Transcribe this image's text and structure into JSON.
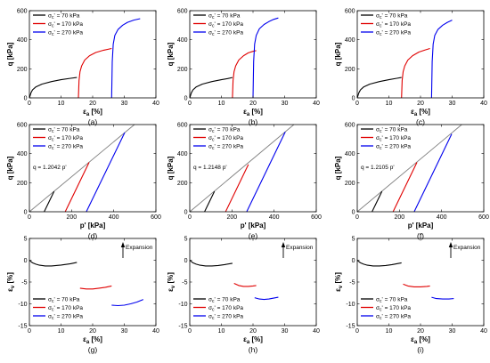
{
  "legend_labels": [
    "σc' = 70 kPa",
    "σc' = 170 kPa",
    "σc' = 270 kPa"
  ],
  "series_colors": [
    "#000000",
    "#e00000",
    "#0000ee"
  ],
  "chart_data": [
    {
      "type": "line",
      "panel": "(a)",
      "xlabel": "εa [%]",
      "ylabel": "q [kPa]",
      "xlim": [
        0,
        40
      ],
      "ylim": [
        0,
        600
      ],
      "xticks": [
        "0",
        "10",
        "20",
        "30",
        "40"
      ],
      "yticks": [
        "0",
        "200",
        "400",
        "600"
      ],
      "legend": "top-left",
      "grid": false,
      "series": [
        {
          "name": "σc' = 70 kPa",
          "color": "#000000",
          "x": [
            0,
            0.5,
            1,
            2,
            4,
            7,
            10,
            13,
            15
          ],
          "y": [
            0,
            35,
            55,
            75,
            95,
            112,
            125,
            135,
            140
          ]
        },
        {
          "name": "σc' = 170 kPa",
          "color": "#e00000",
          "x": [
            15.5,
            15.7,
            16,
            16.5,
            17.5,
            19,
            21,
            23.5,
            26
          ],
          "y": [
            0,
            120,
            180,
            220,
            260,
            290,
            312,
            328,
            340
          ]
        },
        {
          "name": "σc' = 270 kPa",
          "color": "#0000ee",
          "x": [
            26,
            26.2,
            26.5,
            27,
            28,
            29.5,
            31,
            33,
            35
          ],
          "y": [
            0,
            250,
            370,
            430,
            470,
            500,
            520,
            535,
            545
          ]
        }
      ]
    },
    {
      "type": "line",
      "panel": "(b)",
      "xlabel": "εa [%]",
      "ylabel": "q [kPa]",
      "xlim": [
        0,
        40
      ],
      "ylim": [
        0,
        600
      ],
      "xticks": [
        "0",
        "10",
        "20",
        "30",
        "40"
      ],
      "yticks": [
        "0",
        "200",
        "400",
        "600"
      ],
      "legend": "top-left",
      "grid": false,
      "series": [
        {
          "name": "σc' = 70 kPa",
          "color": "#000000",
          "x": [
            0,
            0.5,
            1,
            2,
            4,
            7,
            10,
            12,
            13.5
          ],
          "y": [
            0,
            35,
            55,
            75,
            95,
            112,
            125,
            133,
            140
          ]
        },
        {
          "name": "σc' = 170 kPa",
          "color": "#e00000",
          "x": [
            13.5,
            13.7,
            14,
            14.5,
            15.5,
            17,
            18.5,
            20,
            21
          ],
          "y": [
            0,
            120,
            180,
            220,
            260,
            290,
            310,
            320,
            325
          ]
        },
        {
          "name": "σc' = 270 kPa",
          "color": "#0000ee",
          "x": [
            20,
            20.2,
            20.5,
            21,
            22,
            23.5,
            25,
            26.5,
            28
          ],
          "y": [
            0,
            250,
            370,
            430,
            475,
            505,
            525,
            540,
            550
          ]
        }
      ]
    },
    {
      "type": "line",
      "panel": "(c)",
      "xlabel": "εa [%]",
      "ylabel": "q [kPa]",
      "xlim": [
        0,
        40
      ],
      "ylim": [
        0,
        600
      ],
      "xticks": [
        "0",
        "10",
        "20",
        "30",
        "40"
      ],
      "yticks": [
        "0",
        "200",
        "400",
        "600"
      ],
      "legend": "top-left",
      "grid": false,
      "series": [
        {
          "name": "σc' = 70 kPa",
          "color": "#000000",
          "x": [
            0,
            0.5,
            1,
            2,
            4,
            7,
            10,
            12.5,
            14
          ],
          "y": [
            0,
            35,
            55,
            75,
            95,
            112,
            125,
            135,
            140
          ]
        },
        {
          "name": "σc' = 170 kPa",
          "color": "#e00000",
          "x": [
            14,
            14.2,
            14.5,
            15,
            16,
            17.5,
            19.5,
            21.5,
            23
          ],
          "y": [
            0,
            120,
            180,
            220,
            260,
            290,
            315,
            330,
            340
          ]
        },
        {
          "name": "σc' = 270 kPa",
          "color": "#0000ee",
          "x": [
            23.5,
            23.7,
            24,
            24.5,
            25.5,
            27,
            28.5,
            30
          ],
          "y": [
            0,
            250,
            370,
            430,
            470,
            500,
            520,
            535
          ]
        }
      ]
    },
    {
      "type": "line",
      "panel": "(d)",
      "xlabel": "p' [kPa]",
      "ylabel": "q [kPa]",
      "xlim": [
        0,
        600
      ],
      "ylim": [
        0,
        600
      ],
      "xticks": [
        "0",
        "200",
        "400",
        "600"
      ],
      "yticks": [
        "0",
        "200",
        "400",
        "600"
      ],
      "legend": "top-left",
      "grid": false,
      "annotations": [
        "q = 1.2042 p'"
      ],
      "reference_line": {
        "slope": 1.2042,
        "color": "#808080"
      },
      "series": [
        {
          "name": "σc' = 70 kPa",
          "color": "#000000",
          "x": [
            70,
            117
          ],
          "y": [
            0,
            140
          ]
        },
        {
          "name": "σc' = 170 kPa",
          "color": "#e00000",
          "x": [
            170,
            283
          ],
          "y": [
            0,
            340
          ]
        },
        {
          "name": "σc' = 270 kPa",
          "color": "#0000ee",
          "x": [
            270,
            452
          ],
          "y": [
            0,
            545
          ]
        }
      ]
    },
    {
      "type": "line",
      "panel": "(e)",
      "xlabel": "p' [kPa]",
      "ylabel": "q [kPa]",
      "xlim": [
        0,
        600
      ],
      "ylim": [
        0,
        600
      ],
      "xticks": [
        "0",
        "200",
        "400",
        "600"
      ],
      "yticks": [
        "0",
        "200",
        "400",
        "600"
      ],
      "legend": "top-left",
      "grid": false,
      "annotations": [
        "q = 1.2148 p'"
      ],
      "reference_line": {
        "slope": 1.2148,
        "color": "#808080"
      },
      "series": [
        {
          "name": "σc' = 70 kPa",
          "color": "#000000",
          "x": [
            70,
            117
          ],
          "y": [
            0,
            140
          ]
        },
        {
          "name": "σc' = 170 kPa",
          "color": "#e00000",
          "x": [
            170,
            278
          ],
          "y": [
            0,
            325
          ]
        },
        {
          "name": "σc' = 270 kPa",
          "color": "#0000ee",
          "x": [
            270,
            453
          ],
          "y": [
            0,
            550
          ]
        }
      ]
    },
    {
      "type": "line",
      "panel": "(f)",
      "xlabel": "p' [kPa]",
      "ylabel": "q [kPa]",
      "xlim": [
        0,
        600
      ],
      "ylim": [
        0,
        600
      ],
      "xticks": [
        "0",
        "200",
        "400",
        "600"
      ],
      "yticks": [
        "0",
        "200",
        "400",
        "600"
      ],
      "legend": "top-left",
      "grid": false,
      "annotations": [
        "q = 1.2105 p'"
      ],
      "reference_line": {
        "slope": 1.2105,
        "color": "#808080"
      },
      "series": [
        {
          "name": "σc' = 70 kPa",
          "color": "#000000",
          "x": [
            70,
            117
          ],
          "y": [
            0,
            140
          ]
        },
        {
          "name": "σc' = 170 kPa",
          "color": "#e00000",
          "x": [
            170,
            283
          ],
          "y": [
            0,
            340
          ]
        },
        {
          "name": "σc' = 270 kPa",
          "color": "#0000ee",
          "x": [
            270,
            448
          ],
          "y": [
            0,
            535
          ]
        }
      ]
    },
    {
      "type": "line",
      "panel": "(g)",
      "xlabel": "εa [%]",
      "ylabel": "εv [%]",
      "xlim": [
        0,
        40
      ],
      "ylim": [
        -15,
        5
      ],
      "xticks": [
        "0",
        "10",
        "20",
        "30",
        "40"
      ],
      "yticks": [
        "-15",
        "-10",
        "-5",
        "0",
        "5"
      ],
      "legend": "bottom-left",
      "grid": false,
      "annotations": [
        "Expansion"
      ],
      "series": [
        {
          "name": "σc' = 70 kPa",
          "color": "#000000",
          "x": [
            0,
            1,
            2,
            3,
            5,
            7,
            10,
            13,
            15
          ],
          "y": [
            0,
            -0.6,
            -0.9,
            -1.1,
            -1.3,
            -1.3,
            -1.1,
            -0.8,
            -0.5
          ]
        },
        {
          "name": "σc' = 170 kPa",
          "color": "#e00000",
          "x": [
            16,
            18,
            20,
            22,
            24,
            26
          ],
          "y": [
            -6.4,
            -6.6,
            -6.6,
            -6.4,
            -6.2,
            -5.9
          ]
        },
        {
          "name": "σc' = 270 kPa",
          "color": "#0000ee",
          "x": [
            26,
            28,
            30,
            32,
            34,
            36
          ],
          "y": [
            -10.3,
            -10.4,
            -10.3,
            -10.0,
            -9.6,
            -9.0
          ]
        }
      ]
    },
    {
      "type": "line",
      "panel": "(h)",
      "xlabel": "εa [%]",
      "ylabel": "εv [%]",
      "xlim": [
        0,
        40
      ],
      "ylim": [
        -15,
        5
      ],
      "xticks": [
        "0",
        "10",
        "20",
        "30",
        "40"
      ],
      "yticks": [
        "-15",
        "-10",
        "-5",
        "0",
        "5"
      ],
      "legend": "bottom-left",
      "grid": false,
      "annotations": [
        "Expansion"
      ],
      "series": [
        {
          "name": "σc' = 70 kPa",
          "color": "#000000",
          "x": [
            0,
            1,
            2,
            3,
            5,
            7,
            9,
            11,
            13.5
          ],
          "y": [
            0,
            -0.6,
            -0.9,
            -1.1,
            -1.3,
            -1.3,
            -1.2,
            -1.0,
            -0.7
          ]
        },
        {
          "name": "σc' = 170 kPa",
          "color": "#e00000",
          "x": [
            14,
            15.5,
            17,
            18.5,
            20,
            21
          ],
          "y": [
            -5.3,
            -5.8,
            -6.0,
            -6.0,
            -5.9,
            -5.8
          ]
        },
        {
          "name": "σc' = 270 kPa",
          "color": "#0000ee",
          "x": [
            20.5,
            22,
            23.5,
            25,
            26.5,
            28
          ],
          "y": [
            -8.6,
            -8.9,
            -9.0,
            -8.9,
            -8.7,
            -8.5
          ]
        }
      ]
    },
    {
      "type": "line",
      "panel": "(i)",
      "xlabel": "εa [%]",
      "ylabel": "εv [%]",
      "xlim": [
        0,
        40
      ],
      "ylim": [
        -15,
        5
      ],
      "xticks": [
        "0",
        "10",
        "20",
        "30",
        "40"
      ],
      "yticks": [
        "-15",
        "-10",
        "-5",
        "0",
        "5"
      ],
      "legend": "bottom-left",
      "grid": false,
      "annotations": [
        "Expansion"
      ],
      "series": [
        {
          "name": "σc' = 70 kPa",
          "color": "#000000",
          "x": [
            0,
            1,
            2,
            3,
            5,
            7,
            9,
            11,
            14
          ],
          "y": [
            0,
            -0.6,
            -0.9,
            -1.1,
            -1.3,
            -1.3,
            -1.2,
            -1.0,
            -0.6
          ]
        },
        {
          "name": "σc' = 170 kPa",
          "color": "#e00000",
          "x": [
            14.5,
            16,
            18,
            20,
            22,
            23
          ],
          "y": [
            -5.5,
            -5.9,
            -6.1,
            -6.1,
            -6.0,
            -5.9
          ]
        },
        {
          "name": "σc' = 270 kPa",
          "color": "#0000ee",
          "x": [
            23.5,
            25,
            27,
            29,
            30.5
          ],
          "y": [
            -8.5,
            -8.8,
            -8.9,
            -8.9,
            -8.8
          ]
        }
      ]
    }
  ]
}
